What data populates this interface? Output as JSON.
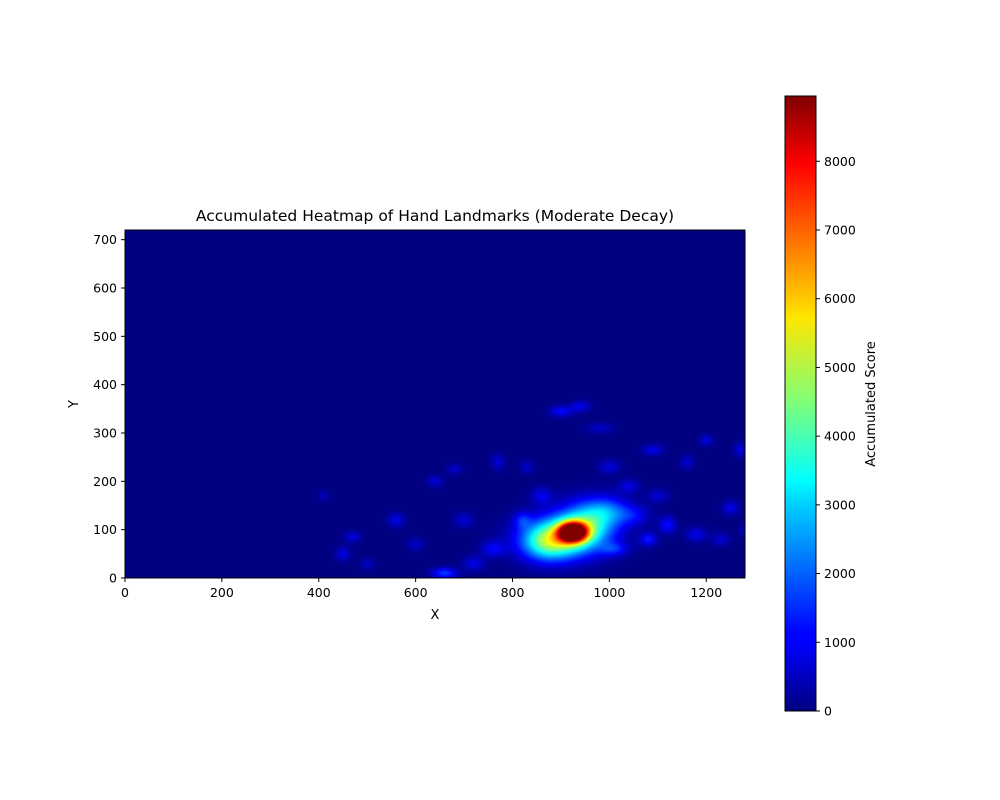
{
  "chart_data": {
    "type": "heatmap",
    "title": "Accumulated Heatmap of Hand Landmarks (Moderate Decay)",
    "xlabel": "X",
    "ylabel": "Y",
    "xlim": [
      0,
      1280
    ],
    "ylim": [
      0,
      720
    ],
    "x_ticks": [
      0,
      200,
      400,
      600,
      800,
      1000,
      1200
    ],
    "y_ticks": [
      0,
      100,
      200,
      300,
      400,
      500,
      600,
      700
    ],
    "grid": false,
    "colormap": "jet",
    "colorbar": {
      "label": "Accumulated Score",
      "range": [
        0,
        8950
      ],
      "ticks": [
        0,
        1000,
        2000,
        3000,
        4000,
        5000,
        6000,
        7000,
        8000
      ]
    },
    "hotspots": [
      {
        "x": 925,
        "y": 95,
        "value": 8900,
        "spread_x": 20,
        "spread_y": 14
      },
      {
        "x": 905,
        "y": 85,
        "value": 4200,
        "spread_x": 55,
        "spread_y": 30
      },
      {
        "x": 960,
        "y": 120,
        "value": 2600,
        "spread_x": 40,
        "spread_y": 30
      },
      {
        "x": 870,
        "y": 70,
        "value": 2000,
        "spread_x": 35,
        "spread_y": 25
      },
      {
        "x": 1000,
        "y": 140,
        "value": 1200,
        "spread_x": 30,
        "spread_y": 20
      },
      {
        "x": 1050,
        "y": 130,
        "value": 900,
        "spread_x": 25,
        "spread_y": 15
      },
      {
        "x": 900,
        "y": 345,
        "value": 1100,
        "spread_x": 16,
        "spread_y": 8
      },
      {
        "x": 940,
        "y": 355,
        "value": 900,
        "spread_x": 14,
        "spread_y": 8
      },
      {
        "x": 1090,
        "y": 265,
        "value": 900,
        "spread_x": 15,
        "spread_y": 8
      },
      {
        "x": 1200,
        "y": 285,
        "value": 800,
        "spread_x": 10,
        "spread_y": 8
      },
      {
        "x": 1270,
        "y": 265,
        "value": 800,
        "spread_x": 10,
        "spread_y": 10
      },
      {
        "x": 1160,
        "y": 240,
        "value": 700,
        "spread_x": 10,
        "spread_y": 10
      },
      {
        "x": 770,
        "y": 240,
        "value": 700,
        "spread_x": 10,
        "spread_y": 12
      },
      {
        "x": 830,
        "y": 230,
        "value": 600,
        "spread_x": 10,
        "spread_y": 10
      },
      {
        "x": 680,
        "y": 225,
        "value": 600,
        "spread_x": 12,
        "spread_y": 8
      },
      {
        "x": 640,
        "y": 200,
        "value": 700,
        "spread_x": 12,
        "spread_y": 8
      },
      {
        "x": 560,
        "y": 120,
        "value": 900,
        "spread_x": 12,
        "spread_y": 10
      },
      {
        "x": 470,
        "y": 85,
        "value": 800,
        "spread_x": 12,
        "spread_y": 8
      },
      {
        "x": 450,
        "y": 50,
        "value": 900,
        "spread_x": 10,
        "spread_y": 10
      },
      {
        "x": 500,
        "y": 30,
        "value": 600,
        "spread_x": 10,
        "spread_y": 8
      },
      {
        "x": 660,
        "y": 10,
        "value": 1600,
        "spread_x": 18,
        "spread_y": 8
      },
      {
        "x": 720,
        "y": 30,
        "value": 900,
        "spread_x": 15,
        "spread_y": 10
      },
      {
        "x": 760,
        "y": 60,
        "value": 1000,
        "spread_x": 18,
        "spread_y": 12
      },
      {
        "x": 700,
        "y": 120,
        "value": 700,
        "spread_x": 15,
        "spread_y": 10
      },
      {
        "x": 1120,
        "y": 110,
        "value": 1200,
        "spread_x": 12,
        "spread_y": 12
      },
      {
        "x": 1080,
        "y": 80,
        "value": 1300,
        "spread_x": 12,
        "spread_y": 10
      },
      {
        "x": 1180,
        "y": 90,
        "value": 900,
        "spread_x": 15,
        "spread_y": 10
      },
      {
        "x": 1250,
        "y": 145,
        "value": 900,
        "spread_x": 12,
        "spread_y": 10
      },
      {
        "x": 1230,
        "y": 80,
        "value": 700,
        "spread_x": 12,
        "spread_y": 10
      },
      {
        "x": 1010,
        "y": 60,
        "value": 1100,
        "spread_x": 20,
        "spread_y": 10
      },
      {
        "x": 980,
        "y": 310,
        "value": 600,
        "spread_x": 20,
        "spread_y": 8
      },
      {
        "x": 1000,
        "y": 230,
        "value": 800,
        "spread_x": 15,
        "spread_y": 10
      },
      {
        "x": 1040,
        "y": 190,
        "value": 800,
        "spread_x": 15,
        "spread_y": 10
      },
      {
        "x": 1100,
        "y": 170,
        "value": 700,
        "spread_x": 15,
        "spread_y": 10
      },
      {
        "x": 860,
        "y": 170,
        "value": 900,
        "spread_x": 15,
        "spread_y": 12
      },
      {
        "x": 820,
        "y": 120,
        "value": 1000,
        "spread_x": 12,
        "spread_y": 12
      },
      {
        "x": 600,
        "y": 70,
        "value": 600,
        "spread_x": 12,
        "spread_y": 10
      },
      {
        "x": 410,
        "y": 170,
        "value": 500,
        "spread_x": 8,
        "spread_y": 8
      },
      {
        "x": 1280,
        "y": 100,
        "value": 500,
        "spread_x": 8,
        "spread_y": 10
      }
    ]
  }
}
